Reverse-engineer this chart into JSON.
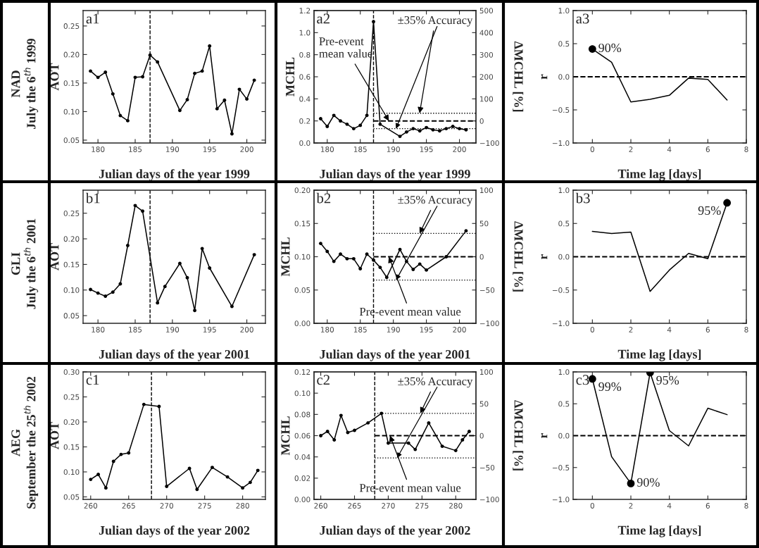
{
  "chart_data": [
    {
      "type": "line",
      "annotations": [
        "a1",
        "NAD\nJuly the 6$^{th}$ 1999"
      ],
      "xlabel": "Julian days of the year 1999",
      "ylabel": "AOT",
      "marker": "circle",
      "x": [
        179,
        180,
        181,
        182,
        183,
        184,
        185,
        186,
        187,
        188,
        191,
        192,
        193,
        194,
        195,
        196,
        197,
        198,
        199,
        200,
        201
      ],
      "series": [
        {
          "color": "#000000",
          "values": [
            0.171,
            0.16,
            0.169,
            0.131,
            0.093,
            0.084,
            0.16,
            0.161,
            0.199,
            0.187,
            0.102,
            0.121,
            0.167,
            0.171,
            0.215,
            0.105,
            0.12,
            0.061,
            0.139,
            0.122,
            0.155
          ]
        }
      ],
      "xlim": [
        178,
        202.5
      ],
      "ylim": [
        0.045,
        0.277
      ],
      "xticks": [
        180,
        185,
        190,
        195,
        200
      ],
      "yticks": [
        {
          "value": 0.05,
          "label": "0.05"
        },
        {
          "value": 0.1,
          "label": "0.10"
        },
        {
          "value": 0.15,
          "label": "0.15"
        },
        {
          "value": 0.2,
          "label": "0.20"
        },
        {
          "value": 0.25,
          "label": "0.25"
        }
      ],
      "ref_lines": [
        {
          "axis": "x",
          "value": 187,
          "line_style": "dashed"
        }
      ]
    },
    {
      "type": "line",
      "annotations": [
        "a2"
      ],
      "xlabel": "Julian days of the year 1999",
      "ylabel": "MCHL",
      "y2label": "ΔMCHL [%]",
      "marker": "circle",
      "x": [
        179,
        180,
        181,
        182,
        183,
        184,
        185,
        186,
        187,
        188,
        191,
        192,
        193,
        194,
        195,
        196,
        197,
        198,
        199,
        200,
        201
      ],
      "series": [
        {
          "color": "#000000",
          "values": [
            0.22,
            0.15,
            0.25,
            0.2,
            0.17,
            0.13,
            0.16,
            0.25,
            1.1,
            0.17,
            0.06,
            0.1,
            0.13,
            0.11,
            0.14,
            0.12,
            0.11,
            0.13,
            0.15,
            0.13,
            0.12
          ]
        }
      ],
      "xlim": [
        178,
        202.5
      ],
      "ylim": [
        0,
        1.2
      ],
      "xticks": [
        180,
        185,
        190,
        195,
        200
      ],
      "yticks": [
        {
          "value": 0,
          "label": "0.0"
        },
        {
          "value": 0.2,
          "label": "0.2"
        },
        {
          "value": 0.4,
          "label": "0.4"
        },
        {
          "value": 0.6,
          "label": "0.6"
        },
        {
          "value": 0.8,
          "label": "0.8"
        },
        {
          "value": 1.0,
          "label": "1.0"
        },
        {
          "value": 1.2,
          "label": "1.2"
        }
      ],
      "y2lim": [
        -100,
        500
      ],
      "y2ticks": [
        -100,
        0,
        100,
        200,
        300,
        400,
        500
      ],
      "ref_lines": [
        {
          "axis": "x",
          "value": 187,
          "line_style": "dashed"
        },
        {
          "axis": "y2",
          "value": 0,
          "line_style": "dashed",
          "label": "Pre-event\nmean value"
        },
        {
          "axis": "y2",
          "value": 35,
          "line_style": "dotted",
          "label": "±35% Accuracy"
        },
        {
          "axis": "y2",
          "value": -35,
          "line_style": "dotted",
          "label": null
        }
      ]
    },
    {
      "type": "line",
      "annotations": [
        "a3",
        {
          "text": "90%",
          "x": 0,
          "y": 0.42
        }
      ],
      "xlabel": "Time lag [days]",
      "ylabel": "r",
      "x": [
        0,
        1,
        2,
        3,
        4,
        5,
        6,
        7
      ],
      "series": [
        {
          "color": "#000000",
          "values": [
            0.42,
            0.22,
            -0.38,
            -0.34,
            -0.28,
            -0.02,
            -0.04,
            -0.35
          ]
        },
        {
          "type": "scatter",
          "color": "#000000",
          "x": [
            0
          ],
          "values": [
            0.42
          ]
        }
      ],
      "xlim": [
        -1,
        8
      ],
      "ylim": [
        -1,
        1
      ],
      "xticks": [
        0,
        2,
        4,
        6,
        8
      ],
      "yticks": [
        {
          "value": -1,
          "label": "−1.0"
        },
        {
          "value": -0.5,
          "label": "−0.5"
        },
        {
          "value": 0,
          "label": "0.0"
        },
        {
          "value": 0.5,
          "label": "0.5"
        },
        {
          "value": 1,
          "label": "1.0"
        }
      ],
      "ref_lines": [
        {
          "axis": "y",
          "value": 0,
          "line_style": "dashed"
        }
      ]
    },
    {
      "type": "line",
      "annotations": [
        "b1",
        "GLI\nJuly the 6$^{th}$ 2001"
      ],
      "xlabel": "Julian days of the year 2001",
      "ylabel": "AOT",
      "marker": "circle",
      "x": [
        179,
        180,
        181,
        182,
        183,
        184,
        185,
        186,
        188,
        189,
        191,
        192,
        193,
        194,
        195,
        198,
        201
      ],
      "series": [
        {
          "color": "#000000",
          "values": [
            0.101,
            0.094,
            0.088,
            0.096,
            0.112,
            0.187,
            0.265,
            0.254,
            0.075,
            0.107,
            0.152,
            0.124,
            0.06,
            0.181,
            0.143,
            0.068,
            0.169
          ]
        }
      ],
      "xlim": [
        178,
        202.5
      ],
      "ylim": [
        0.035,
        0.295
      ],
      "xticks": [
        180,
        185,
        190,
        195,
        200
      ],
      "yticks": [
        {
          "value": 0.05,
          "label": "0.05"
        },
        {
          "value": 0.1,
          "label": "0.10"
        },
        {
          "value": 0.15,
          "label": "0.15"
        },
        {
          "value": 0.2,
          "label": "0.20"
        },
        {
          "value": 0.25,
          "label": "0.25"
        }
      ],
      "ref_lines": [
        {
          "axis": "x",
          "value": 187,
          "line_style": "dashed"
        }
      ]
    },
    {
      "type": "line",
      "annotations": [
        "b2"
      ],
      "xlabel": "Julian days of the year 2001",
      "ylabel": "MCHL",
      "y2label": "ΔMCHL [%]",
      "marker": "circle",
      "x": [
        179,
        180,
        181,
        182,
        183,
        184,
        185,
        186,
        187,
        188,
        189,
        191,
        192,
        193,
        194,
        195,
        198,
        201
      ],
      "series": [
        {
          "color": "#000000",
          "values": [
            0.12,
            0.108,
            0.093,
            0.104,
            0.097,
            0.097,
            0.082,
            0.104,
            0.095,
            0.084,
            0.069,
            0.111,
            0.093,
            0.081,
            0.089,
            0.08,
            0.1,
            0.139
          ]
        }
      ],
      "xlim": [
        178,
        202.5
      ],
      "ylim": [
        0,
        0.2
      ],
      "xticks": [
        180,
        185,
        190,
        195,
        200
      ],
      "yticks": [
        {
          "value": 0,
          "label": "0.00"
        },
        {
          "value": 0.05,
          "label": "0.05"
        },
        {
          "value": 0.1,
          "label": "0.10"
        },
        {
          "value": 0.15,
          "label": "0.15"
        },
        {
          "value": 0.2,
          "label": "0.20"
        }
      ],
      "y2lim": [
        -100,
        100
      ],
      "y2ticks": [
        -100,
        -50,
        0,
        50,
        100
      ],
      "ref_lines": [
        {
          "axis": "x",
          "value": 187,
          "line_style": "dashed"
        },
        {
          "axis": "y2",
          "value": 0,
          "line_style": "dashed",
          "label": "Pre-event mean value"
        },
        {
          "axis": "y2",
          "value": 35,
          "line_style": "dotted",
          "label": "±35% Accuracy"
        },
        {
          "axis": "y2",
          "value": -35,
          "line_style": "dotted",
          "label": null
        }
      ]
    },
    {
      "type": "line",
      "annotations": [
        "b3",
        {
          "text": "95%",
          "x": 7,
          "y": 0.81
        }
      ],
      "xlabel": "Time lag [days]",
      "ylabel": "r",
      "x": [
        0,
        1,
        2,
        3,
        4,
        5,
        6,
        7
      ],
      "series": [
        {
          "color": "#000000",
          "values": [
            0.38,
            0.35,
            0.37,
            -0.52,
            -0.2,
            0.05,
            -0.03,
            0.81
          ]
        },
        {
          "type": "scatter",
          "color": "#000000",
          "x": [
            7
          ],
          "values": [
            0.81
          ]
        }
      ],
      "xlim": [
        -1,
        8
      ],
      "ylim": [
        -1,
        1
      ],
      "xticks": [
        0,
        2,
        4,
        6,
        8
      ],
      "yticks": [
        {
          "value": -1,
          "label": "−1.0"
        },
        {
          "value": -0.5,
          "label": "−0.5"
        },
        {
          "value": 0,
          "label": "0.0"
        },
        {
          "value": 0.5,
          "label": "0.5"
        },
        {
          "value": 1,
          "label": "1.0"
        }
      ],
      "ref_lines": [
        {
          "axis": "y",
          "value": 0,
          "line_style": "dashed"
        }
      ]
    },
    {
      "type": "line",
      "annotations": [
        "c1",
        "AEG\nSeptember the 25$^{th}$ 2002"
      ],
      "xlabel": "Julian days of the year 2002",
      "ylabel": "AOT",
      "marker": "circle",
      "x": [
        260,
        261,
        262,
        263,
        264,
        265,
        267,
        269,
        270,
        273,
        274,
        276,
        278,
        280,
        281,
        282
      ],
      "series": [
        {
          "color": "#000000",
          "values": [
            0.085,
            0.095,
            0.068,
            0.121,
            0.135,
            0.138,
            0.235,
            0.231,
            0.071,
            0.107,
            0.065,
            0.109,
            0.09,
            0.068,
            0.079,
            0.103
          ]
        }
      ],
      "xlim": [
        259,
        283
      ],
      "ylim": [
        0.045,
        0.3
      ],
      "xticks": [
        260,
        265,
        270,
        275,
        280
      ],
      "yticks": [
        {
          "value": 0.05,
          "label": "0.05"
        },
        {
          "value": 0.1,
          "label": "0.10"
        },
        {
          "value": 0.15,
          "label": "0.15"
        },
        {
          "value": 0.2,
          "label": "0.20"
        },
        {
          "value": 0.25,
          "label": "0.25"
        },
        {
          "value": 0.3,
          "label": "0.30"
        }
      ],
      "ref_lines": [
        {
          "axis": "x",
          "value": 268,
          "line_style": "dashed"
        }
      ]
    },
    {
      "type": "line",
      "annotations": [
        "c2"
      ],
      "xlabel": "Julian days of the year 2002",
      "ylabel": "MCHL",
      "y2label": "ΔMCHL [%]",
      "marker": "circle",
      "x": [
        260,
        261,
        262,
        263,
        264,
        265,
        267,
        269,
        270,
        273,
        274,
        276,
        278,
        280,
        281,
        282
      ],
      "series": [
        {
          "color": "#000000",
          "values": [
            0.06,
            0.064,
            0.056,
            0.079,
            0.063,
            0.065,
            0.072,
            0.081,
            0.053,
            0.053,
            0.047,
            0.072,
            0.05,
            0.046,
            0.056,
            0.064
          ]
        }
      ],
      "xlim": [
        259,
        283
      ],
      "ylim": [
        0,
        0.12
      ],
      "xticks": [
        260,
        265,
        270,
        275,
        280
      ],
      "yticks": [
        {
          "value": 0,
          "label": "0.00"
        },
        {
          "value": 0.02,
          "label": "0.02"
        },
        {
          "value": 0.04,
          "label": "0.04"
        },
        {
          "value": 0.06,
          "label": "0.06"
        },
        {
          "value": 0.08,
          "label": "0.08"
        },
        {
          "value": 0.1,
          "label": "0.10"
        },
        {
          "value": 0.12,
          "label": "0.12"
        }
      ],
      "y2lim": [
        -100,
        100
      ],
      "y2ticks": [
        -100,
        -50,
        0,
        50,
        100
      ],
      "ref_lines": [
        {
          "axis": "x",
          "value": 268,
          "line_style": "dashed"
        },
        {
          "axis": "y2",
          "value": 0,
          "line_style": "dashed",
          "label": "Pre-event mean value"
        },
        {
          "axis": "y2",
          "value": 35,
          "line_style": "dotted",
          "label": "±35% Accuracy"
        },
        {
          "axis": "y2",
          "value": -35,
          "line_style": "dotted",
          "label": null
        }
      ]
    },
    {
      "type": "line",
      "annotations": [
        "c3",
        {
          "text": "99%",
          "x": 0,
          "y": 0.89
        },
        {
          "text": "90%",
          "x": 2,
          "y": -0.75
        },
        {
          "text": "95%",
          "x": 3,
          "y": 0.99
        }
      ],
      "xlabel": "Time lag [days]",
      "ylabel": "r",
      "x": [
        0,
        1,
        2,
        3,
        4,
        5,
        6,
        7
      ],
      "series": [
        {
          "color": "#000000",
          "values": [
            0.89,
            -0.33,
            -0.75,
            0.99,
            0.08,
            -0.16,
            0.43,
            0.33
          ]
        },
        {
          "type": "scatter",
          "color": "#000000",
          "x": [
            0,
            2,
            3
          ],
          "values": [
            0.89,
            -0.75,
            0.99
          ]
        }
      ],
      "xlim": [
        -1,
        8
      ],
      "ylim": [
        -1,
        1
      ],
      "xticks": [
        0,
        2,
        4,
        6,
        8
      ],
      "yticks": [
        {
          "value": -1,
          "label": "−1.0"
        },
        {
          "value": -0.5,
          "label": "−0.5"
        },
        {
          "value": 0,
          "label": "0.0"
        },
        {
          "value": 0.5,
          "label": "0.5"
        },
        {
          "value": 1,
          "label": "1.0"
        }
      ],
      "ref_lines": [
        {
          "axis": "y",
          "value": 0,
          "line_style": "dashed"
        }
      ]
    }
  ]
}
